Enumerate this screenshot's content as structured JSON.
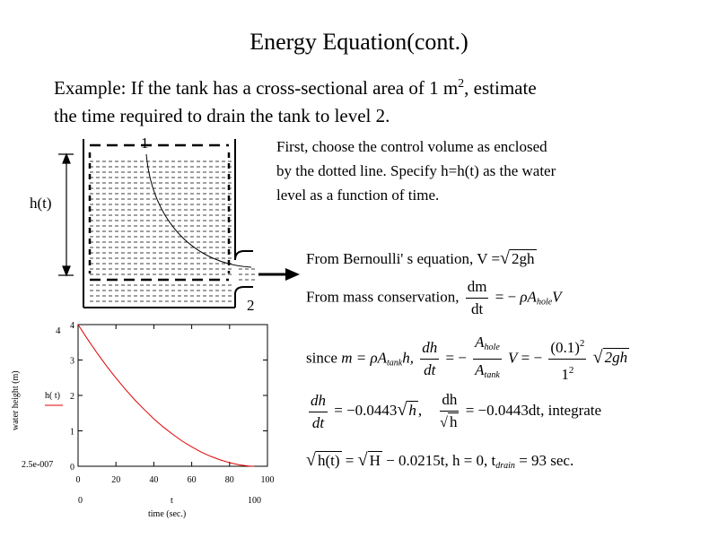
{
  "title": "Energy Equation(cont.)",
  "intro": {
    "line1": "Example: If the tank has a cross-sectional area of 1 m",
    "line1_sup": "2",
    "line1_end": ", estimate",
    "line2": "the time required to drain the tank to level 2."
  },
  "diagram": {
    "label_1": "1",
    "label_2": "2",
    "label_h": "h(t)"
  },
  "description": [
    "First, choose the control volume as enclosed",
    "by the dotted line.  Specify h=h(t) as the water",
    "level as a function of time."
  ],
  "equations": {
    "bernoulli_label": "From Bernoulli' s equation,",
    "bernoulli_lhs": "V =",
    "bernoulli_rad": "2gh",
    "mass_label": "From mass conservation,",
    "mass_num": "dm",
    "mass_den": "dt",
    "mass_rhs_sign": "= −",
    "mass_rhs_rho": "ρ",
    "mass_rhs_A": "A",
    "mass_rhs_sub": "hole",
    "mass_rhs_V": "V",
    "since_label": "since",
    "since_m": "m = ",
    "since_rho": "ρ",
    "since_A": "A",
    "since_sub": "tank",
    "since_h": "h,",
    "since_dh": "dh",
    "since_dt": "dt",
    "since_eq": "= −",
    "since_Ahole": "A",
    "since_Ahole_sub": "hole",
    "since_Atank": "A",
    "since_Atank_sub": "tank",
    "since_V": "V",
    "since_eq2": "= −",
    "since_num": "(0.1)",
    "since_num_sup": "2",
    "since_den": "1",
    "since_den_sup": "2",
    "since_rad": "2gh",
    "rate_dh": "dh",
    "rate_dt": "dt",
    "rate_rhs": "= −0.0443",
    "rate_rad": "h",
    "rate_comma": ",",
    "rate2_num": "dh",
    "rate2_den": "h",
    "rate2_rhs": "= −0.0443dt, integrate",
    "final_rad1": "h(t)",
    "final_eq": "=",
    "final_rad2": "H",
    "final_rest": "− 0.0215t,  h = 0,  t",
    "final_sub": "drain",
    "final_end": "= 93 sec."
  },
  "chart_data": {
    "type": "line",
    "title": "",
    "xlabel": "time (sec.)",
    "ylabel": "water height (m)",
    "x_var": "t",
    "legend_label": "h( t)",
    "legend_color": "#e00000",
    "xlim": [
      0,
      100
    ],
    "ylim": [
      0,
      4
    ],
    "x_ticks": [
      "0",
      "20",
      "40",
      "60",
      "80",
      "100"
    ],
    "y_ticks": [
      "0",
      "1",
      "2",
      "3",
      "4"
    ],
    "y_max_label": "4",
    "y_min_label": "2.5e-007",
    "x_min_label": "0",
    "x_max_label": "100",
    "series": [
      {
        "name": "h( t)",
        "color": "#e00000",
        "x": [
          0,
          5,
          10,
          15,
          20,
          25,
          30,
          35,
          40,
          45,
          50,
          55,
          60,
          65,
          70,
          75,
          80,
          85,
          90,
          93
        ],
        "y": [
          4.0,
          3.59,
          3.2,
          2.83,
          2.49,
          2.17,
          1.87,
          1.6,
          1.34,
          1.11,
          0.9,
          0.71,
          0.55,
          0.4,
          0.28,
          0.18,
          0.1,
          0.04,
          0.005,
          0.0
        ]
      }
    ]
  }
}
